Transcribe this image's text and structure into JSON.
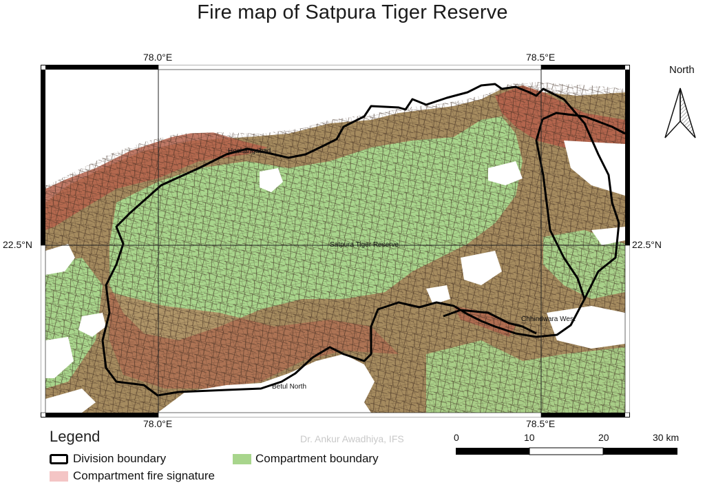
{
  "title": "Fire map of Satpura Tiger Reserve",
  "map": {
    "coords": {
      "top_left": "78.0°E",
      "top_right": "78.5°E",
      "bottom_left": "78.0°E",
      "bottom_right": "78.5°E",
      "left_mid": "22.5°N",
      "right_mid": "22.5°N"
    },
    "labels": {
      "hoshangabad": "Hoshangabad",
      "satpura": "Satpura Tiger Reserve",
      "chhindwara": "Chhindwara West",
      "betul": "Betul North"
    },
    "colors": {
      "compartment_fill": "#a8d58c",
      "mid_fire": "#a58b5f",
      "high_fire": "#b5614b",
      "boundary": "#000000",
      "compartment_line": "#3d2a1e"
    }
  },
  "north": {
    "label": "North",
    "icon": "north-arrow-icon"
  },
  "legend": {
    "title": "Legend",
    "items": [
      {
        "label": "Division boundary",
        "symbol": "outlined-box",
        "color": "#000000"
      },
      {
        "label": "Compartment boundary",
        "symbol": "filled-box",
        "color": "#a8d58c"
      },
      {
        "label": "Compartment fire signature",
        "symbol": "filled-box",
        "color": "#f4c5c5"
      }
    ]
  },
  "watermark": "Dr. Ankur Awadhiya, IFS",
  "scalebar": {
    "ticks": [
      "0",
      "10",
      "20",
      "30 km"
    ]
  }
}
